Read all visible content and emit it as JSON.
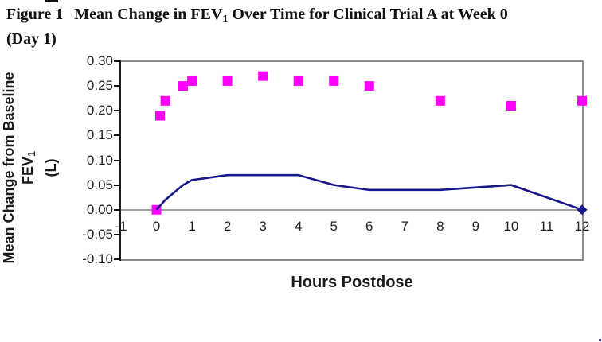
{
  "figure": {
    "figure_label": "Figure 1",
    "title_pre": "Mean Change in FEV",
    "title_sub": "1",
    "title_post": " Over Time for Clinical Trial A at Week 0",
    "title_line2": "(Day 1)"
  },
  "chart_data": {
    "type": "line",
    "title": "Figure 1 Mean Change in FEV1 Over Time for Clinical Trial A at Week 0 (Day 1)",
    "xlabel": "Hours Postdose",
    "ylabel": "Mean Change from Baseline FEV1 (L)",
    "ylabel_pre": "Mean Change from Baseline FEV",
    "ylabel_sub": "1",
    "ylabel_unit": "(L)",
    "xlim": [
      -1,
      12
    ],
    "ylim": [
      -0.1,
      0.3
    ],
    "x_ticks": [
      "-1",
      "0",
      "1",
      "2",
      "3",
      "4",
      "5",
      "6",
      "7",
      "8",
      "9",
      "10",
      "11",
      "12"
    ],
    "y_ticks": [
      "0.30",
      "0.25",
      "0.20",
      "0.15",
      "0.10",
      "0.05",
      "0.00",
      "-0.05",
      "-0.10"
    ],
    "grid": "zero-line-only",
    "legend": "none",
    "series": [
      {
        "name": "magenta-squares",
        "type": "scatter",
        "marker": "square",
        "color": "#FF00FF",
        "x": [
          0,
          0.1,
          0.25,
          0.75,
          1,
          2,
          3,
          4,
          5,
          6,
          8,
          10,
          12
        ],
        "y": [
          0.0,
          0.19,
          0.22,
          0.25,
          0.26,
          0.26,
          0.27,
          0.26,
          0.26,
          0.25,
          0.22,
          0.21,
          0.22
        ]
      },
      {
        "name": "navy-line",
        "type": "line",
        "marker": "diamond-at-end",
        "color": "#17178C",
        "x": [
          0,
          0.25,
          0.75,
          1,
          2,
          3,
          4,
          5,
          6,
          8,
          10,
          12
        ],
        "y": [
          0.0,
          0.02,
          0.05,
          0.06,
          0.07,
          0.07,
          0.07,
          0.05,
          0.04,
          0.04,
          0.05,
          0.0
        ]
      }
    ]
  }
}
